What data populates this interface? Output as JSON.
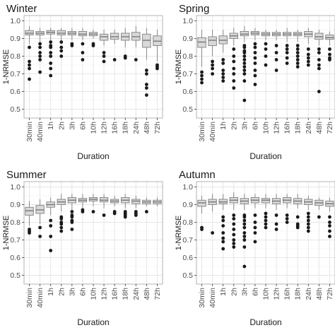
{
  "chart_data": [
    {
      "type": "box",
      "title": "Winter",
      "xlabel": "Duration",
      "ylabel": "1-NRMSE",
      "categories": [
        "30min",
        "40min",
        "1h",
        "2h",
        "3h",
        "6h",
        "10h",
        "12h",
        "16h",
        "18h",
        "24h",
        "48h",
        "72h"
      ],
      "ylim": [
        0.45,
        1.03
      ],
      "yticks": [
        0.5,
        0.6,
        0.7,
        0.8,
        0.9,
        1.0
      ],
      "yticklabels": [
        "0.5",
        "0.6",
        "0.7",
        "0.8",
        "0.9",
        "1.0"
      ],
      "grid": true,
      "boxes": [
        {
          "whisker_low": 0.87,
          "q1": 0.92,
          "median": 0.93,
          "q3": 0.945,
          "whisker_high": 0.97,
          "outliers": [
            0.85,
            0.77,
            0.75,
            0.73,
            0.67
          ]
        },
        {
          "whisker_low": 0.88,
          "q1": 0.92,
          "median": 0.93,
          "q3": 0.94,
          "whisker_high": 0.96,
          "outliers": [
            0.87,
            0.85,
            0.82,
            0.8,
            0.78,
            0.71
          ]
        },
        {
          "whisker_low": 0.89,
          "q1": 0.925,
          "median": 0.935,
          "q3": 0.945,
          "whisker_high": 0.96,
          "outliers": [
            0.88,
            0.86,
            0.85,
            0.82,
            0.8,
            0.76,
            0.73,
            0.69
          ]
        },
        {
          "whisker_low": 0.89,
          "q1": 0.92,
          "median": 0.93,
          "q3": 0.945,
          "whisker_high": 0.96,
          "outliers": [
            0.88,
            0.85,
            0.83,
            0.8
          ]
        },
        {
          "whisker_low": 0.89,
          "q1": 0.92,
          "median": 0.93,
          "q3": 0.94,
          "whisker_high": 0.96,
          "outliers": [
            0.87,
            0.86
          ]
        },
        {
          "whisker_low": 0.89,
          "q1": 0.915,
          "median": 0.925,
          "q3": 0.94,
          "whisker_high": 0.96,
          "outliers": [
            0.87,
            0.82,
            0.78
          ]
        },
        {
          "whisker_low": 0.9,
          "q1": 0.915,
          "median": 0.925,
          "q3": 0.935,
          "whisker_high": 0.95,
          "outliers": [
            0.87,
            0.86
          ]
        },
        {
          "whisker_low": 0.86,
          "q1": 0.89,
          "median": 0.91,
          "q3": 0.925,
          "whisker_high": 0.95,
          "outliers": [
            0.82,
            0.8,
            0.77
          ]
        },
        {
          "whisker_low": 0.87,
          "q1": 0.895,
          "median": 0.91,
          "q3": 0.93,
          "whisker_high": 0.95,
          "outliers": [
            0.78
          ]
        },
        {
          "whisker_low": 0.85,
          "q1": 0.89,
          "median": 0.91,
          "q3": 0.93,
          "whisker_high": 0.96,
          "outliers": [
            0.8,
            0.79
          ]
        },
        {
          "whisker_low": 0.85,
          "q1": 0.89,
          "median": 0.91,
          "q3": 0.935,
          "whisker_high": 0.97,
          "outliers": [
            0.78
          ]
        },
        {
          "whisker_low": 0.78,
          "q1": 0.85,
          "median": 0.89,
          "q3": 0.925,
          "whisker_high": 0.96,
          "outliers": [
            0.72,
            0.7,
            0.64,
            0.62,
            0.58
          ]
        },
        {
          "whisker_low": 0.77,
          "q1": 0.86,
          "median": 0.885,
          "q3": 0.915,
          "whisker_high": 0.95,
          "outliers": [
            0.75,
            0.74,
            0.73
          ]
        }
      ]
    },
    {
      "type": "box",
      "title": "Spring",
      "xlabel": "Duration",
      "ylabel": "1-NRMSE",
      "categories": [
        "30min",
        "40min",
        "1h",
        "2h",
        "3h",
        "6h",
        "10h",
        "12h",
        "16h",
        "18h",
        "24h",
        "48h",
        "72h"
      ],
      "ylim": [
        0.45,
        1.03
      ],
      "yticks": [
        0.5,
        0.6,
        0.7,
        0.8,
        0.9,
        1.0
      ],
      "yticklabels": [
        "0.5",
        "0.6",
        "0.7",
        "0.8",
        "0.9",
        "1.0"
      ],
      "grid": true,
      "boxes": [
        {
          "whisker_low": 0.74,
          "q1": 0.85,
          "median": 0.88,
          "q3": 0.905,
          "whisker_high": 0.95,
          "outliers": [
            0.71,
            0.69,
            0.67,
            0.65
          ]
        },
        {
          "whisker_low": 0.8,
          "q1": 0.86,
          "median": 0.89,
          "q3": 0.91,
          "whisker_high": 0.95,
          "outliers": [
            0.77,
            0.75,
            0.73,
            0.7
          ]
        },
        {
          "whisker_low": 0.82,
          "q1": 0.87,
          "median": 0.89,
          "q3": 0.915,
          "whisker_high": 0.95,
          "outliers": [
            0.78,
            0.76,
            0.72,
            0.7,
            0.68,
            0.66
          ]
        },
        {
          "whisker_low": 0.86,
          "q1": 0.9,
          "median": 0.915,
          "q3": 0.93,
          "whisker_high": 0.96,
          "outliers": [
            0.84,
            0.8,
            0.77,
            0.73,
            0.7,
            0.66,
            0.62
          ]
        },
        {
          "whisker_low": 0.88,
          "q1": 0.915,
          "median": 0.925,
          "q3": 0.94,
          "whisker_high": 0.97,
          "outliers": [
            0.86,
            0.85,
            0.83,
            0.82,
            0.8,
            0.78,
            0.76,
            0.74,
            0.72,
            0.7,
            0.66,
            0.55
          ]
        },
        {
          "whisker_low": 0.89,
          "q1": 0.92,
          "median": 0.93,
          "q3": 0.94,
          "whisker_high": 0.96,
          "outliers": [
            0.87,
            0.85,
            0.82,
            0.79,
            0.76,
            0.72,
            0.69,
            0.64
          ]
        },
        {
          "whisker_low": 0.89,
          "q1": 0.915,
          "median": 0.925,
          "q3": 0.935,
          "whisker_high": 0.95,
          "outliers": [
            0.87,
            0.84,
            0.8,
            0.75
          ]
        },
        {
          "whisker_low": 0.89,
          "q1": 0.915,
          "median": 0.925,
          "q3": 0.935,
          "whisker_high": 0.95,
          "outliers": [
            0.86,
            0.82,
            0.78,
            0.72
          ]
        },
        {
          "whisker_low": 0.88,
          "q1": 0.915,
          "median": 0.925,
          "q3": 0.935,
          "whisker_high": 0.96,
          "outliers": [
            0.86,
            0.84,
            0.82,
            0.79,
            0.76
          ]
        },
        {
          "whisker_low": 0.88,
          "q1": 0.915,
          "median": 0.925,
          "q3": 0.935,
          "whisker_high": 0.95,
          "outliers": [
            0.86,
            0.84,
            0.82,
            0.8,
            0.78,
            0.76,
            0.74
          ]
        },
        {
          "whisker_low": 0.87,
          "q1": 0.91,
          "median": 0.925,
          "q3": 0.94,
          "whisker_high": 0.96,
          "outliers": [
            0.84,
            0.81,
            0.79,
            0.77,
            0.75
          ]
        },
        {
          "whisker_low": 0.86,
          "q1": 0.895,
          "median": 0.91,
          "q3": 0.93,
          "whisker_high": 0.95,
          "outliers": [
            0.84,
            0.82,
            0.78,
            0.75,
            0.73,
            0.6
          ]
        },
        {
          "whisker_low": 0.86,
          "q1": 0.895,
          "median": 0.905,
          "q3": 0.92,
          "whisker_high": 0.94,
          "outliers": [
            0.84,
            0.81,
            0.79,
            0.78
          ]
        }
      ]
    },
    {
      "type": "box",
      "title": "Summer",
      "xlabel": "Duration",
      "ylabel": "1-NRMSE",
      "categories": [
        "30min",
        "40min",
        "1h",
        "2h",
        "3h",
        "6h",
        "10h",
        "12h",
        "16h",
        "18h",
        "24h",
        "48h",
        "72h"
      ],
      "ylim": [
        0.45,
        1.03
      ],
      "yticks": [
        0.5,
        0.6,
        0.7,
        0.8,
        0.9,
        1.0
      ],
      "yticklabels": [
        "0.5",
        "0.6",
        "0.7",
        "0.8",
        "0.9",
        "1.0"
      ],
      "grid": true,
      "boxes": [
        {
          "whisker_low": 0.78,
          "q1": 0.84,
          "median": 0.865,
          "q3": 0.885,
          "whisker_high": 0.92,
          "outliers": [
            0.76,
            0.75,
            0.74
          ]
        },
        {
          "whisker_low": 0.79,
          "q1": 0.85,
          "median": 0.87,
          "q3": 0.895,
          "whisker_high": 0.93,
          "outliers": [
            0.77,
            0.72
          ]
        },
        {
          "whisker_low": 0.84,
          "q1": 0.885,
          "median": 0.9,
          "q3": 0.915,
          "whisker_high": 0.94,
          "outliers": [
            0.81,
            0.78,
            0.72,
            0.64
          ]
        },
        {
          "whisker_low": 0.86,
          "q1": 0.9,
          "median": 0.915,
          "q3": 0.93,
          "whisker_high": 0.96,
          "outliers": [
            0.83,
            0.82,
            0.8,
            0.79,
            0.77,
            0.75
          ]
        },
        {
          "whisker_low": 0.87,
          "q1": 0.91,
          "median": 0.925,
          "q3": 0.94,
          "whisker_high": 0.96,
          "outliers": [
            0.86,
            0.84,
            0.83,
            0.81,
            0.8,
            0.76
          ]
        },
        {
          "whisker_low": 0.88,
          "q1": 0.915,
          "median": 0.925,
          "q3": 0.935,
          "whisker_high": 0.96,
          "outliers": [
            0.87,
            0.86
          ]
        },
        {
          "whisker_low": 0.89,
          "q1": 0.92,
          "median": 0.93,
          "q3": 0.94,
          "whisker_high": 0.96,
          "outliers": [
            0.86
          ]
        },
        {
          "whisker_low": 0.88,
          "q1": 0.915,
          "median": 0.925,
          "q3": 0.94,
          "whisker_high": 0.96,
          "outliers": [
            0.84
          ]
        },
        {
          "whisker_low": 0.89,
          "q1": 0.91,
          "median": 0.92,
          "q3": 0.93,
          "whisker_high": 0.95,
          "outliers": [
            0.86,
            0.85
          ]
        },
        {
          "whisker_low": 0.88,
          "q1": 0.91,
          "median": 0.925,
          "q3": 0.94,
          "whisker_high": 0.96,
          "outliers": [
            0.86,
            0.85,
            0.84,
            0.83
          ]
        },
        {
          "whisker_low": 0.88,
          "q1": 0.905,
          "median": 0.92,
          "q3": 0.93,
          "whisker_high": 0.95,
          "outliers": [
            0.86,
            0.85,
            0.84
          ]
        },
        {
          "whisker_low": 0.89,
          "q1": 0.905,
          "median": 0.915,
          "q3": 0.925,
          "whisker_high": 0.94,
          "outliers": [
            0.86
          ]
        },
        {
          "whisker_low": 0.89,
          "q1": 0.905,
          "median": 0.915,
          "q3": 0.925,
          "whisker_high": 0.94,
          "outliers": []
        }
      ]
    },
    {
      "type": "box",
      "title": "Autumn",
      "xlabel": "Duration",
      "ylabel": "1-NRMSE",
      "categories": [
        "30min",
        "40min",
        "1h",
        "2h",
        "3h",
        "6h",
        "10h",
        "12h",
        "16h",
        "18h",
        "24h",
        "48h",
        "72h"
      ],
      "ylim": [
        0.45,
        1.03
      ],
      "yticks": [
        0.5,
        0.6,
        0.7,
        0.8,
        0.9,
        1.0
      ],
      "yticklabels": [
        "0.5",
        "0.6",
        "0.7",
        "0.8",
        "0.9",
        "1.0"
      ],
      "grid": true,
      "boxes": [
        {
          "whisker_low": 0.85,
          "q1": 0.89,
          "median": 0.91,
          "q3": 0.925,
          "whisker_high": 0.95,
          "outliers": [
            0.77,
            0.76
          ]
        },
        {
          "whisker_low": 0.86,
          "q1": 0.9,
          "median": 0.915,
          "q3": 0.93,
          "whisker_high": 0.96,
          "outliers": [
            0.74
          ]
        },
        {
          "whisker_low": 0.87,
          "q1": 0.905,
          "median": 0.915,
          "q3": 0.93,
          "whisker_high": 0.96,
          "outliers": [
            0.83,
            0.81,
            0.78,
            0.74,
            0.71,
            0.69,
            0.65
          ]
        },
        {
          "whisker_low": 0.87,
          "q1": 0.91,
          "median": 0.925,
          "q3": 0.94,
          "whisker_high": 0.97,
          "outliers": [
            0.84,
            0.82,
            0.79,
            0.76,
            0.73,
            0.7,
            0.68,
            0.66
          ]
        },
        {
          "whisker_low": 0.87,
          "q1": 0.905,
          "median": 0.92,
          "q3": 0.935,
          "whisker_high": 0.96,
          "outliers": [
            0.84,
            0.83,
            0.81,
            0.79,
            0.77,
            0.74,
            0.72,
            0.7,
            0.66,
            0.55
          ]
        },
        {
          "whisker_low": 0.88,
          "q1": 0.91,
          "median": 0.925,
          "q3": 0.94,
          "whisker_high": 0.96,
          "outliers": [
            0.84,
            0.8,
            0.77,
            0.74,
            0.69
          ]
        },
        {
          "whisker_low": 0.88,
          "q1": 0.91,
          "median": 0.925,
          "q3": 0.935,
          "whisker_high": 0.96,
          "outliers": [
            0.85,
            0.83,
            0.81,
            0.79,
            0.77
          ]
        },
        {
          "whisker_low": 0.87,
          "q1": 0.905,
          "median": 0.92,
          "q3": 0.935,
          "whisker_high": 0.96,
          "outliers": [
            0.84,
            0.79,
            0.76
          ]
        },
        {
          "whisker_low": 0.88,
          "q1": 0.91,
          "median": 0.925,
          "q3": 0.94,
          "whisker_high": 0.96,
          "outliers": [
            0.84,
            0.82,
            0.8
          ]
        },
        {
          "whisker_low": 0.88,
          "q1": 0.905,
          "median": 0.92,
          "q3": 0.935,
          "whisker_high": 0.96,
          "outliers": [
            0.83,
            0.79,
            0.78,
            0.77
          ]
        },
        {
          "whisker_low": 0.87,
          "q1": 0.9,
          "median": 0.915,
          "q3": 0.93,
          "whisker_high": 0.95,
          "outliers": [
            0.85,
            0.83,
            0.81,
            0.79,
            0.77,
            0.75
          ]
        },
        {
          "whisker_low": 0.87,
          "q1": 0.895,
          "median": 0.91,
          "q3": 0.925,
          "whisker_high": 0.94,
          "outliers": [
            0.83
          ]
        },
        {
          "whisker_low": 0.86,
          "q1": 0.89,
          "median": 0.905,
          "q3": 0.92,
          "whisker_high": 0.94,
          "outliers": [
            0.83,
            0.8,
            0.78,
            0.75,
            0.72
          ]
        }
      ]
    }
  ],
  "style": {
    "box_fill": "#d9d9d9",
    "box_stroke": "#7f7f7f",
    "outlier_fill": "#1a1a1a",
    "grid_color": "#e6e6e6",
    "panel_border": "#b3b3b3",
    "text_color": "#1a1a1a",
    "tick_label_color": "#4d4d4d"
  }
}
